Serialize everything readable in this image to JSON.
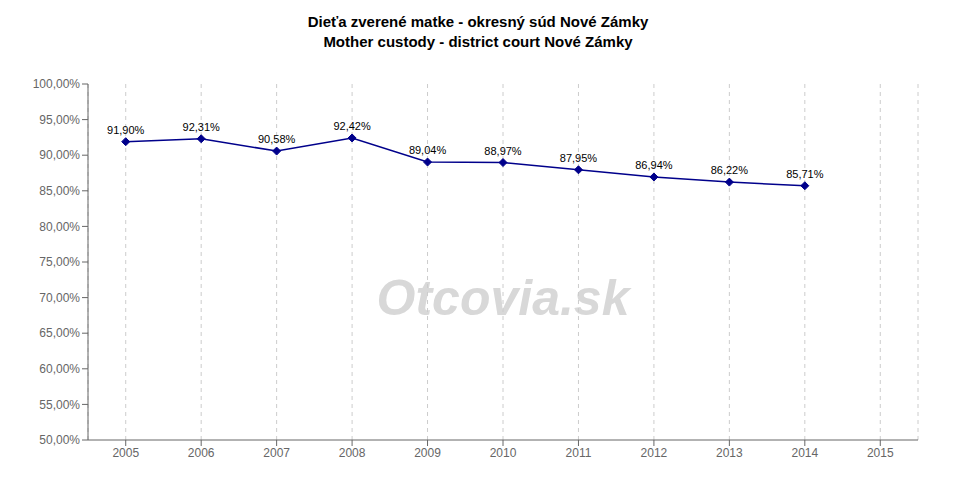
{
  "chart_data": {
    "type": "line",
    "title": "Dieťa zverené matke - okresný súd Nové Zámky",
    "subtitle": "Mother custody - district court Nové Zámky",
    "annotations": [
      "Otcovia.sk"
    ],
    "x": [
      2005,
      2006,
      2007,
      2008,
      2009,
      2010,
      2011,
      2012,
      2013,
      2014
    ],
    "values": [
      91.9,
      92.31,
      90.58,
      92.42,
      89.04,
      88.97,
      87.95,
      86.94,
      86.22,
      85.71
    ],
    "value_labels": [
      "91,90%",
      "92,31%",
      "90,58%",
      "92,42%",
      "89,04%",
      "88,97%",
      "87,95%",
      "86,94%",
      "86,22%",
      "85,71%"
    ],
    "data_labels": true,
    "xlim": [
      2004.5,
      2015.5
    ],
    "xticks": [
      2005,
      2006,
      2007,
      2008,
      2009,
      2010,
      2011,
      2012,
      2013,
      2014,
      2015
    ],
    "ylim": [
      50.0,
      100.0
    ],
    "yticks": [
      {
        "value": 50.0,
        "label": "50,00%"
      },
      {
        "value": 55.0,
        "label": "55,00%"
      },
      {
        "value": 60.0,
        "label": "60,00%"
      },
      {
        "value": 65.0,
        "label": "65,00%"
      },
      {
        "value": 70.0,
        "label": "70,00%"
      },
      {
        "value": 75.0,
        "label": "75,00%"
      },
      {
        "value": 80.0,
        "label": "80,00%"
      },
      {
        "value": 85.0,
        "label": "85,00%"
      },
      {
        "value": 90.0,
        "label": "90,00%"
      },
      {
        "value": 95.0,
        "label": "95,00%"
      },
      {
        "value": 100.0,
        "label": "100,00%"
      }
    ],
    "color": "#00008B",
    "marker": "diamond",
    "grid": "x"
  }
}
